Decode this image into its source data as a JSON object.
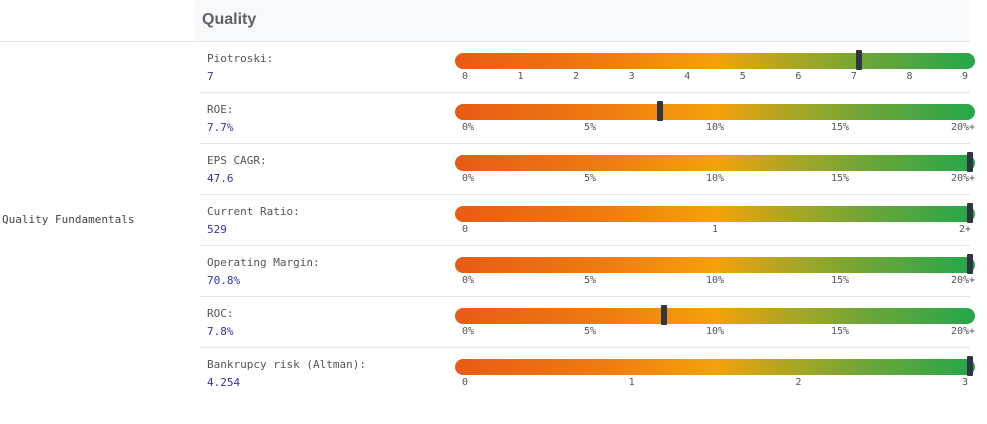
{
  "header": {
    "title": "Quality"
  },
  "section": {
    "label": "Quality Fundamentals"
  },
  "metrics": [
    {
      "label": "Piotroski:",
      "value": "7",
      "fraction": 0.777,
      "ticks": [
        "0",
        "1",
        "2",
        "3",
        "4",
        "5",
        "6",
        "7",
        "8",
        "9"
      ]
    },
    {
      "label": "ROE:",
      "value": "7.7%",
      "fraction": 0.395,
      "ticks": [
        "0%",
        "5%",
        "10%",
        "15%",
        "20%+"
      ]
    },
    {
      "label": "EPS CAGR:",
      "value": "47.6",
      "fraction": 1.0,
      "ticks": [
        "0%",
        "5%",
        "10%",
        "15%",
        "20%+"
      ]
    },
    {
      "label": "Current Ratio:",
      "value": "529",
      "fraction": 1.0,
      "ticks": [
        "0",
        "1",
        "2+"
      ]
    },
    {
      "label": "Operating Margin:",
      "value": "70.8%",
      "fraction": 1.0,
      "ticks": [
        "0%",
        "5%",
        "10%",
        "15%",
        "20%+"
      ]
    },
    {
      "label": "ROC:",
      "value": "7.8%",
      "fraction": 0.401,
      "ticks": [
        "0%",
        "5%",
        "10%",
        "15%",
        "20%+"
      ]
    },
    {
      "label": "Bankrupcy risk (Altman):",
      "value": "4.254",
      "fraction": 1.0,
      "ticks": [
        "0",
        "1",
        "2",
        "3"
      ]
    }
  ]
}
